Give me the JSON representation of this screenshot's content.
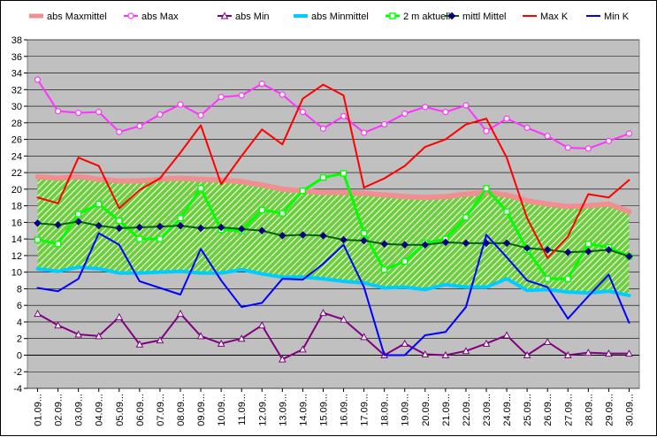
{
  "chart_data": {
    "type": "line",
    "title": "",
    "xlabel": "",
    "ylabel": "",
    "ylim": [
      -4,
      38
    ],
    "ytick_step": 2,
    "grid": true,
    "legend_position": "top",
    "plot_background": "#c0c0c0",
    "categories": [
      "01.09...",
      "02.09...",
      "03.09...",
      "04.09...",
      "05.09...",
      "06.09...",
      "07.09...",
      "08.09...",
      "09.09...",
      "10.09...",
      "11.09...",
      "12.09...",
      "13.09...",
      "14.09...",
      "15.09...",
      "16.09...",
      "17.09...",
      "18.09...",
      "19.09...",
      "20.09...",
      "21.09...",
      "22.09...",
      "23.09...",
      "24.09...",
      "25.09...",
      "26.09...",
      "27.09...",
      "28.09...",
      "29.09...",
      "30.09..."
    ],
    "band": {
      "upper_series": "abs Maxmittel",
      "lower_series": "abs Minmittel",
      "fill": "#6ecf3e",
      "stripe": "#ffffff"
    },
    "series": [
      {
        "name": "abs Maxmittel",
        "color": "#f08f8f",
        "width": 6,
        "marker": "none",
        "values": [
          21.5,
          21.3,
          21.5,
          21.2,
          21.0,
          21.0,
          21.2,
          21.3,
          21.2,
          21.1,
          20.9,
          20.5,
          20.0,
          19.8,
          19.6,
          19.6,
          19.5,
          19.3,
          19.1,
          19.0,
          19.1,
          19.4,
          19.6,
          19.3,
          18.6,
          18.2,
          17.9,
          18.0,
          18.2,
          17.3
        ]
      },
      {
        "name": "abs Max",
        "color": "#ff33ff",
        "width": 2,
        "marker": "circle",
        "values": [
          33.2,
          29.4,
          29.2,
          29.3,
          26.9,
          27.6,
          29.0,
          30.2,
          28.9,
          31.1,
          31.3,
          32.7,
          31.4,
          29.3,
          27.3,
          28.8,
          26.8,
          27.8,
          29.1,
          29.9,
          29.3,
          30.1,
          27.0,
          28.5,
          27.4,
          26.4,
          25.0,
          24.9,
          25.8,
          26.7
        ]
      },
      {
        "name": "abs Min",
        "color": "#800080",
        "width": 2,
        "marker": "triangle",
        "values": [
          5.0,
          3.6,
          2.5,
          2.3,
          4.6,
          1.3,
          1.8,
          5.0,
          2.3,
          1.4,
          2.0,
          3.6,
          -0.5,
          0.7,
          5.1,
          4.3,
          2.2,
          0.0,
          1.4,
          0.1,
          0.0,
          0.5,
          1.4,
          2.4,
          0.0,
          1.6,
          0.0,
          0.3,
          0.2,
          0.2
        ]
      },
      {
        "name": "abs Minmittel",
        "color": "#00ccff",
        "width": 4,
        "marker": "none",
        "values": [
          10.4,
          10.1,
          10.6,
          10.4,
          9.9,
          9.9,
          10.0,
          10.1,
          9.9,
          9.9,
          10.3,
          9.8,
          9.4,
          9.4,
          9.2,
          8.9,
          8.7,
          8.1,
          8.2,
          7.9,
          8.5,
          8.2,
          8.2,
          9.2,
          7.8,
          7.9,
          7.6,
          7.5,
          7.7,
          7.2
        ]
      },
      {
        "name": "2 m aktuell",
        "color": "#00ff00",
        "width": 3,
        "marker": "square",
        "values": [
          13.9,
          13.4,
          17.0,
          18.2,
          16.2,
          14.0,
          14.0,
          16.5,
          20.1,
          15.1,
          15.0,
          17.5,
          17.1,
          19.8,
          21.4,
          21.9,
          14.7,
          10.3,
          11.3,
          13.5,
          14.0,
          16.6,
          20.1,
          17.3,
          12.7,
          9.2,
          9.2,
          13.4,
          13.0,
          11.9
        ]
      },
      {
        "name": "mittl Mittel",
        "color": "#006400",
        "width": 2,
        "marker": "diamond",
        "values": [
          15.9,
          15.7,
          16.1,
          15.6,
          15.3,
          15.4,
          15.5,
          15.6,
          15.3,
          15.4,
          15.2,
          15.0,
          14.4,
          14.5,
          14.4,
          13.9,
          13.8,
          13.4,
          13.3,
          13.3,
          13.6,
          13.5,
          13.5,
          13.5,
          12.9,
          12.7,
          12.4,
          12.5,
          12.7,
          11.9
        ]
      },
      {
        "name": "Max K",
        "color": "#ff0000",
        "width": 2,
        "marker": "none",
        "values": [
          19.0,
          18.3,
          23.8,
          22.8,
          17.7,
          19.9,
          21.3,
          24.4,
          27.7,
          20.6,
          24.0,
          27.2,
          25.4,
          30.9,
          32.6,
          31.3,
          20.2,
          21.3,
          22.8,
          25.1,
          26.0,
          27.8,
          28.5,
          23.8,
          16.5,
          11.7,
          14.3,
          19.4,
          19.0,
          21.1
        ]
      },
      {
        "name": "Min K",
        "color": "#0000ff",
        "width": 2,
        "marker": "none",
        "values": [
          8.1,
          7.7,
          9.2,
          14.7,
          13.3,
          8.9,
          8.1,
          7.3,
          12.8,
          9.0,
          5.8,
          6.3,
          9.2,
          9.1,
          11.0,
          13.3,
          8.2,
          0.0,
          0.0,
          2.4,
          2.8,
          5.8,
          14.5,
          11.8,
          9.0,
          8.2,
          4.4,
          7.1,
          9.7,
          3.9
        ]
      }
    ]
  }
}
